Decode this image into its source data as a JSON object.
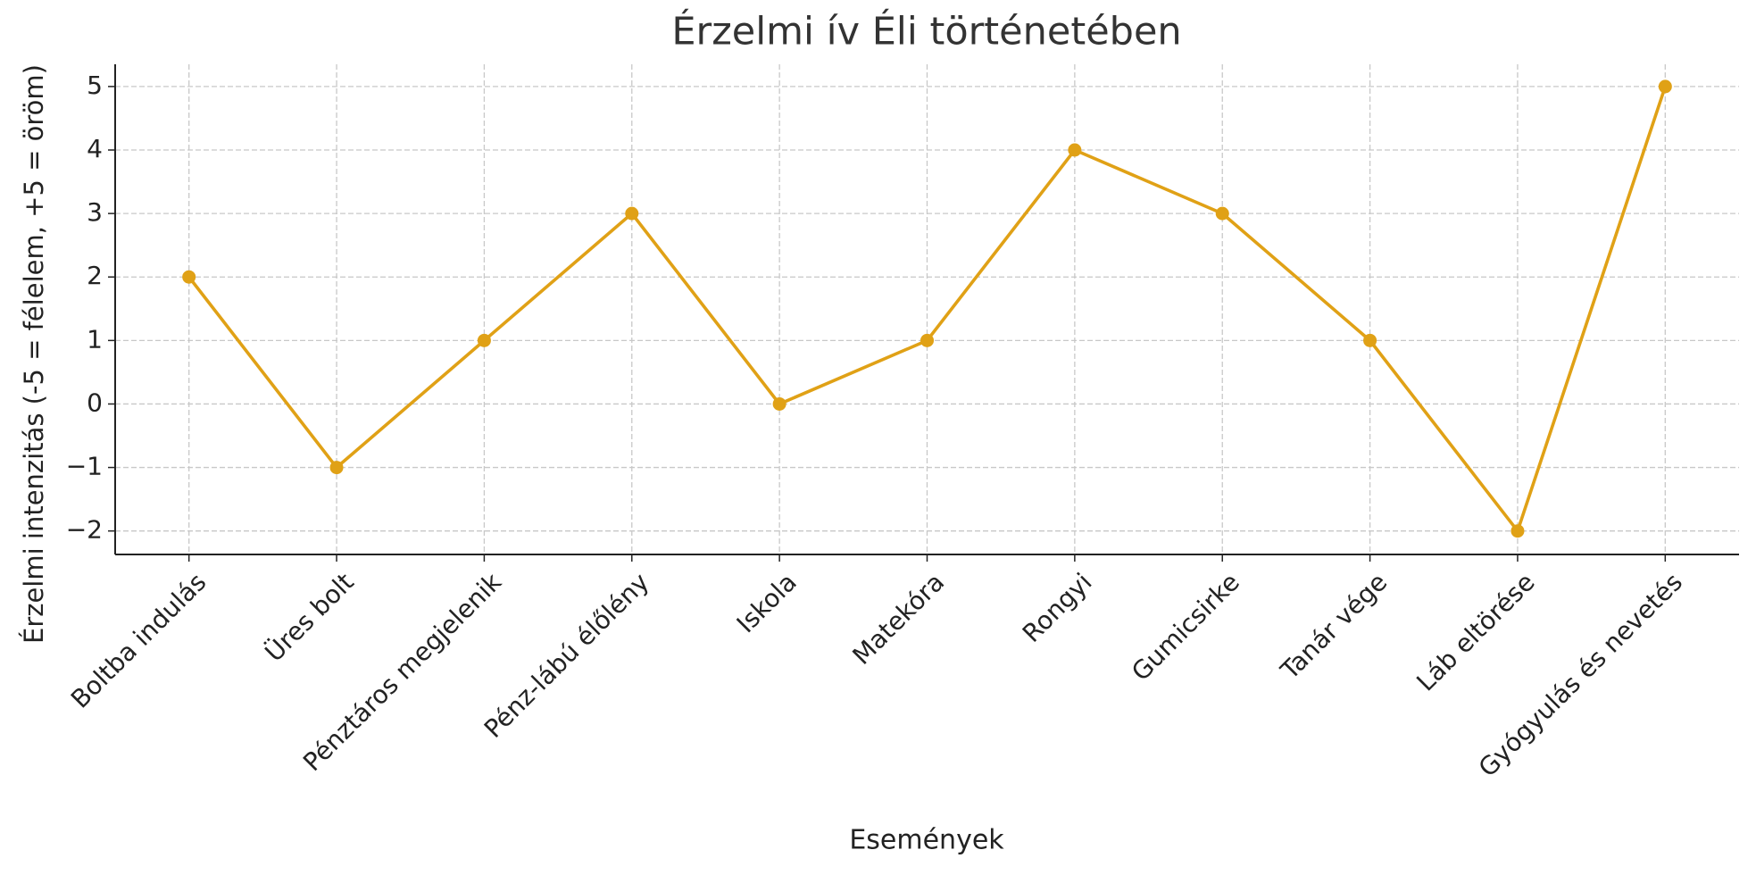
{
  "chart_data": {
    "type": "line",
    "title": "Érzelmi ív Éli történetében",
    "x_label": "Események",
    "y_label": "Érzelmi intenzitás (-5 = félelem, +5 = öröm)",
    "categories": [
      "Boltba indulás",
      "Üres bolt",
      "Pénztáros megjelenik",
      "Pénz-lábú élőlény",
      "Iskola",
      "Matekóra",
      "Rongyi",
      "Gumicsirke",
      "Tanár vége",
      "Láb eltörése",
      "Gyógyulás és nevetés"
    ],
    "values": [
      2,
      -1,
      1,
      3,
      0,
      1,
      4,
      3,
      1,
      -2,
      5
    ],
    "color": "#e0a116",
    "ylim": [
      -2.37,
      5.35
    ],
    "yticks": [
      {
        "value": -2,
        "label": "−2"
      },
      {
        "value": -1,
        "label": "−1"
      },
      0,
      1,
      2,
      3,
      4,
      5
    ],
    "grid": true
  }
}
